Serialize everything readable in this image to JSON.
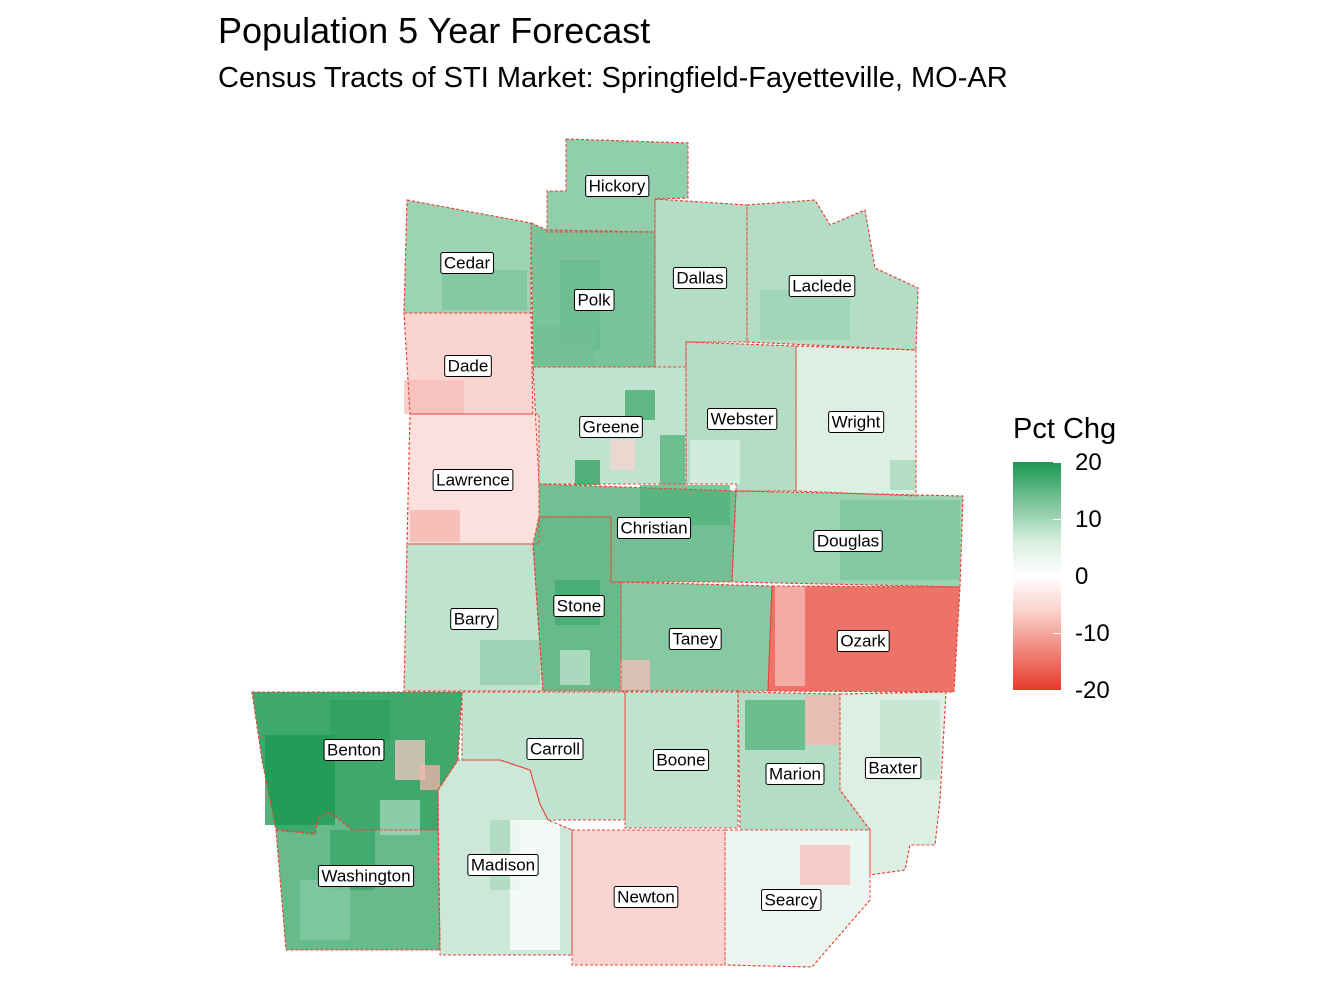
{
  "title": "Population 5 Year Forecast",
  "subtitle": "Census Tracts of STI Market: Springfield-Fayetteville, MO-AR",
  "legend": {
    "title": "Pct Chg",
    "ticks": [
      "20",
      "10",
      "0",
      "-10",
      "-20"
    ],
    "colors": {
      "high": "#1a9850",
      "mid": "#ffffff",
      "low": "#e63a2a"
    }
  },
  "counties": [
    {
      "name": "Hickory",
      "value": 8
    },
    {
      "name": "Cedar",
      "value": 7
    },
    {
      "name": "Polk",
      "value": 10
    },
    {
      "name": "Dallas",
      "value": 5
    },
    {
      "name": "Laclede",
      "value": 5
    },
    {
      "name": "Dade",
      "value": -3
    },
    {
      "name": "Greene",
      "value": 4
    },
    {
      "name": "Webster",
      "value": 5
    },
    {
      "name": "Wright",
      "value": 2
    },
    {
      "name": "Lawrence",
      "value": -2
    },
    {
      "name": "Christian",
      "value": 11
    },
    {
      "name": "Douglas",
      "value": 7
    },
    {
      "name": "Barry",
      "value": 4
    },
    {
      "name": "Stone",
      "value": 12
    },
    {
      "name": "Taney",
      "value": 9
    },
    {
      "name": "Ozark",
      "value": -13
    },
    {
      "name": "Benton",
      "value": 16
    },
    {
      "name": "Carroll",
      "value": 4
    },
    {
      "name": "Boone",
      "value": 4
    },
    {
      "name": "Marion",
      "value": 5
    },
    {
      "name": "Baxter",
      "value": 2
    },
    {
      "name": "Washington",
      "value": 12
    },
    {
      "name": "Madison",
      "value": 3
    },
    {
      "name": "Newton",
      "value": -3
    },
    {
      "name": "Searcy",
      "value": 1
    }
  ]
}
